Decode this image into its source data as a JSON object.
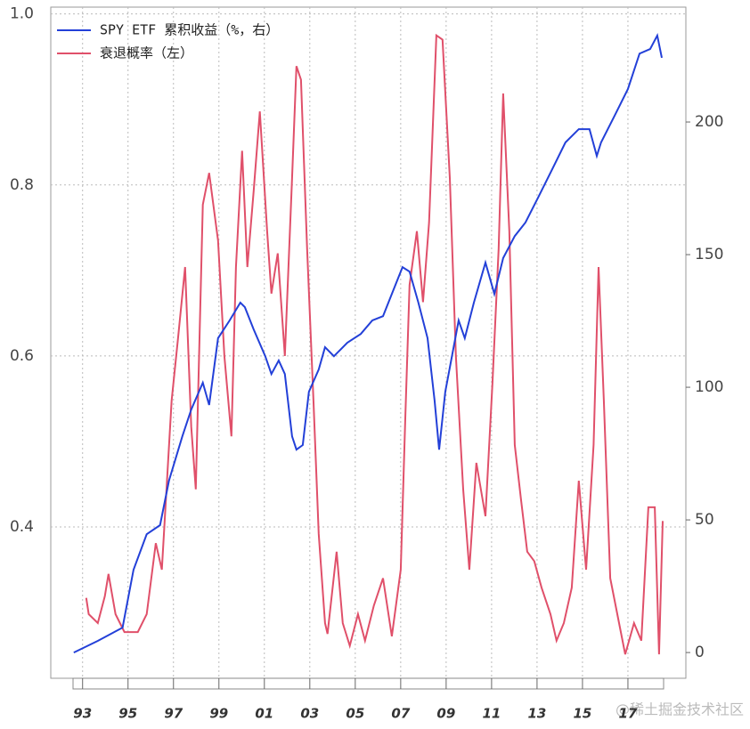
{
  "chart_data": {
    "type": "line",
    "watermark": "@稀土掘金技术社区",
    "xlim": [
      1991.6,
      2019.55
    ],
    "xticks": [
      {
        "value": 1993,
        "label": "93"
      },
      {
        "value": 1995,
        "label": "95"
      },
      {
        "value": 1997,
        "label": "97"
      },
      {
        "value": 1999,
        "label": "99"
      },
      {
        "value": 2001,
        "label": "01"
      },
      {
        "value": 2003,
        "label": "03"
      },
      {
        "value": 2005,
        "label": "05"
      },
      {
        "value": 2007,
        "label": "07"
      },
      {
        "value": 2009,
        "label": "09"
      },
      {
        "value": 2011,
        "label": "11"
      },
      {
        "value": 2013,
        "label": "13"
      },
      {
        "value": 2015,
        "label": "15"
      },
      {
        "value": 2017,
        "label": "17"
      }
    ],
    "ylim": [
      0.223,
      1.008
    ],
    "yticks": [
      {
        "value": 0.4,
        "label": "0.4"
      },
      {
        "value": 0.6,
        "label": "0.6"
      },
      {
        "value": 0.8,
        "label": "0.8"
      },
      {
        "value": 1.0,
        "label": "1.0"
      }
    ],
    "y2lim": [
      -9.7,
      243.3
    ],
    "y2ticks": [
      0,
      50,
      100,
      150,
      200
    ],
    "grid": true,
    "legend": "top-left",
    "series": [
      {
        "name": "SPY ETF 累积收益（%，右）",
        "color": "#2340d8",
        "axis": "y2",
        "x": [
          1992.61,
          1993.67,
          1994.76,
          1995.24,
          1995.82,
          1996.41,
          1996.8,
          1997.39,
          1997.78,
          1998.29,
          1998.57,
          1998.96,
          1999.47,
          1999.94,
          2000.14,
          2000.53,
          2001.04,
          2001.31,
          2001.63,
          2001.9,
          2002.22,
          2002.41,
          2002.69,
          2002.96,
          2003.39,
          2003.67,
          2004.06,
          2004.65,
          2005.24,
          2005.75,
          2006.22,
          2006.61,
          2007.08,
          2007.39,
          2007.78,
          2008.18,
          2008.49,
          2008.69,
          2008.96,
          2009.55,
          2009.82,
          2010.22,
          2010.73,
          2011.12,
          2011.51,
          2012.02,
          2012.49,
          2013.08,
          2013.67,
          2014.25,
          2014.84,
          2015.31,
          2015.63,
          2015.82,
          2016.41,
          2017.0,
          2017.51,
          2017.98,
          2018.29,
          2018.49
        ],
        "values": [
          0,
          4.4,
          9.4,
          31.2,
          44.6,
          48,
          64.8,
          81.5,
          91.6,
          101.7,
          93.3,
          118.5,
          125.2,
          131.9,
          130.2,
          121.8,
          111.7,
          105,
          110.1,
          105,
          81.5,
          76.5,
          78.2,
          98.3,
          106.7,
          115.1,
          111.7,
          116.8,
          120.1,
          125.2,
          126.8,
          135.2,
          145.3,
          143.6,
          131.9,
          118.5,
          95,
          76.5,
          98.3,
          125.2,
          118.5,
          131.9,
          147,
          135.2,
          148.7,
          157,
          162.1,
          172.1,
          182.2,
          192.3,
          197.3,
          197.3,
          187.2,
          192.3,
          202.3,
          212.4,
          225.8,
          227.5,
          232.6,
          224.2
        ]
      },
      {
        "name": "衰退概率（左）",
        "color": "#e0506a",
        "x": [
          1993.16,
          1993.27,
          1993.67,
          1993.98,
          1994.14,
          1994.45,
          1994.84,
          1995.43,
          1995.82,
          1996.22,
          1996.49,
          1996.92,
          1997.2,
          1997.51,
          1997.78,
          1997.98,
          1998.29,
          1998.57,
          1998.96,
          1999.24,
          1999.55,
          1999.75,
          2000.02,
          2000.25,
          2000.53,
          2000.8,
          2001.12,
          2001.31,
          2001.59,
          2001.9,
          2002.22,
          2002.41,
          2002.61,
          2002.88,
          2003.16,
          2003.39,
          2003.67,
          2003.78,
          2004.18,
          2004.45,
          2004.76,
          2005.12,
          2005.43,
          2005.82,
          2006.22,
          2006.61,
          2007.0,
          2007.2,
          2007.39,
          2007.71,
          2007.98,
          2008.25,
          2008.57,
          2008.84,
          2009.16,
          2009.43,
          2009.75,
          2010.02,
          2010.33,
          2010.73,
          2011.04,
          2011.31,
          2011.51,
          2011.78,
          2012.02,
          2012.29,
          2012.57,
          2012.88,
          2013.2,
          2013.59,
          2013.86,
          2014.18,
          2014.53,
          2014.84,
          2015.16,
          2015.49,
          2015.71,
          2015.94,
          2016.22,
          2016.61,
          2016.88,
          2017.27,
          2017.59,
          2017.9,
          2018.18,
          2018.37,
          2018.53
        ],
        "values": [
          0.317,
          0.298,
          0.2875,
          0.319,
          0.345,
          0.298,
          0.277,
          0.277,
          0.298,
          0.381,
          0.35,
          0.548,
          0.621,
          0.704,
          0.517,
          0.444,
          0.777,
          0.814,
          0.735,
          0.6,
          0.506,
          0.704,
          0.84,
          0.704,
          0.793,
          0.886,
          0.746,
          0.673,
          0.72,
          0.6,
          0.808,
          0.939,
          0.923,
          0.725,
          0.548,
          0.392,
          0.2875,
          0.275,
          0.371,
          0.2875,
          0.261,
          0.298,
          0.267,
          0.308,
          0.34,
          0.272,
          0.35,
          0.527,
          0.683,
          0.746,
          0.663,
          0.756,
          0.975,
          0.97,
          0.808,
          0.6,
          0.444,
          0.35,
          0.475,
          0.4125,
          0.569,
          0.725,
          0.907,
          0.746,
          0.496,
          0.433,
          0.371,
          0.36,
          0.329,
          0.298,
          0.267,
          0.2875,
          0.329,
          0.454,
          0.35,
          0.496,
          0.704,
          0.548,
          0.34,
          0.2875,
          0.251,
          0.2875,
          0.267,
          0.423,
          0.423,
          0.251,
          0.407
        ]
      }
    ]
  }
}
